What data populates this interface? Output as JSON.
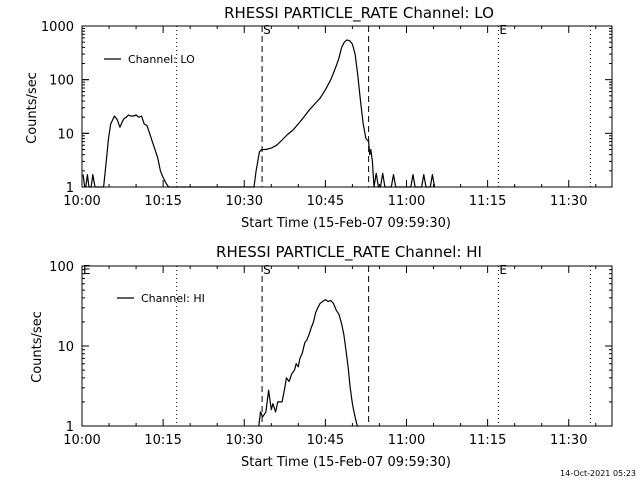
{
  "chart_data": [
    {
      "type": "line",
      "title": "RHESSI PARTICLE_RATE Channel: LO",
      "xlabel": "Start Time (15-Feb-07 09:59:30)",
      "ylabel": "Counts/sec",
      "x_unit": "minutes after 10:00",
      "xlim": [
        0,
        98
      ],
      "ylim": [
        1,
        1000
      ],
      "yscale": "log",
      "x_ticks": [
        {
          "label": "10:00",
          "value": 0
        },
        {
          "label": "10:15",
          "value": 15
        },
        {
          "label": "10:30",
          "value": 30
        },
        {
          "label": "10:45",
          "value": 45
        },
        {
          "label": "11:00",
          "value": 60
        },
        {
          "label": "11:15",
          "value": 75
        },
        {
          "label": "11:30",
          "value": 90
        }
      ],
      "y_ticks": [
        {
          "label": "1",
          "value": 1
        },
        {
          "label": "10",
          "value": 10
        },
        {
          "label": "100",
          "value": 100
        },
        {
          "label": "1000",
          "value": 1000
        }
      ],
      "legend": "Channel: LO",
      "legend_position": "top-left",
      "markers": [
        {
          "label": "",
          "minute": 0,
          "style": "dotted"
        },
        {
          "label": "",
          "minute": 17.5,
          "style": "dotted"
        },
        {
          "label": "S",
          "minute": 33.3,
          "style": "dashed"
        },
        {
          "label": "",
          "minute": 53,
          "style": "dashed"
        },
        {
          "label": "E",
          "minute": 77,
          "style": "dotted"
        },
        {
          "label": "",
          "minute": 94,
          "style": "dotted"
        }
      ],
      "series": [
        {
          "x": [
            0.2,
            0.5,
            0.7,
            1.0,
            1.3,
            1.7,
            2.0,
            2.4,
            2.7,
            3.0,
            4.0,
            4.3,
            4.6,
            4.9,
            5.3,
            5.7,
            6.0,
            6.5,
            7.0,
            7.5,
            7.8,
            8.2,
            8.6,
            9.0,
            9.5,
            10.0,
            10.5,
            11.0,
            11.5,
            12.0,
            12.5,
            13.0,
            13.5,
            14.0,
            14.5,
            15.0,
            15.5,
            16.0,
            16.3,
            16.6,
            16.9,
            17.2,
            31.8,
            32.2,
            32.5,
            32.8,
            33.2,
            34.0,
            35.0,
            36.0,
            37.0,
            38.0,
            39.0,
            40.0,
            41.0,
            42.0,
            43.0,
            44.0,
            45.0,
            46.0,
            47.0,
            47.5,
            48.0,
            48.5,
            49.0,
            49.5,
            50.0,
            50.5,
            51.0,
            51.5,
            52.0,
            52.5,
            53.0,
            53.2,
            53.4,
            53.7,
            54.0,
            54.4,
            54.8,
            55.2,
            55.6,
            56.0,
            56.4,
            56.8,
            57.2,
            57.6,
            58.0,
            58.4,
            58.8,
            59.2,
            59.6,
            60.0,
            60.4,
            60.8,
            61.2,
            61.6,
            62.0,
            62.4,
            62.8,
            63.2,
            63.6,
            64.0,
            64.4,
            64.8,
            65.2
          ],
          "y": [
            1.7,
            1,
            1,
            1.7,
            1,
            1,
            1.7,
            1,
            1,
            1,
            1,
            2,
            4,
            8,
            15,
            18,
            21,
            18,
            13,
            17,
            19,
            20,
            22,
            21,
            21,
            22,
            20,
            21,
            15,
            14,
            10,
            7,
            5,
            3.5,
            2,
            1.5,
            1.2,
            1,
            1,
            1,
            1,
            1,
            1,
            2,
            3,
            4.5,
            5,
            5,
            5.3,
            6,
            7.5,
            9.5,
            11.5,
            15,
            20,
            27,
            35,
            45,
            65,
            100,
            180,
            250,
            400,
            500,
            550,
            530,
            460,
            300,
            120,
            40,
            15,
            8,
            7,
            4,
            5,
            3,
            1,
            1.8,
            1,
            1,
            1.8,
            1,
            1,
            1,
            1,
            1.7,
            1,
            1,
            1,
            1,
            1,
            1,
            1,
            1,
            1.7,
            1,
            1,
            1,
            1,
            1.7,
            1,
            1,
            1,
            1.7,
            1
          ]
        }
      ]
    },
    {
      "type": "line",
      "title": "RHESSI PARTICLE_RATE Channel: HI",
      "xlabel": "Start Time (15-Feb-07 09:59:30)",
      "ylabel": "Counts/sec",
      "x_unit": "minutes after 10:00",
      "xlim": [
        0,
        98
      ],
      "ylim": [
        1,
        100
      ],
      "yscale": "log",
      "x_ticks": [
        {
          "label": "10:00",
          "value": 0
        },
        {
          "label": "10:15",
          "value": 15
        },
        {
          "label": "10:30",
          "value": 30
        },
        {
          "label": "10:45",
          "value": 45
        },
        {
          "label": "11:00",
          "value": 60
        },
        {
          "label": "11:15",
          "value": 75
        },
        {
          "label": "11:30",
          "value": 90
        }
      ],
      "y_ticks": [
        {
          "label": "1",
          "value": 1
        },
        {
          "label": "10",
          "value": 10
        },
        {
          "label": "100",
          "value": 100
        }
      ],
      "legend": "Channel: HI",
      "legend_position": "top-left",
      "markers": [
        {
          "label": "E",
          "minute": 0,
          "style": "dotted"
        },
        {
          "label": "",
          "minute": 17.5,
          "style": "dotted"
        },
        {
          "label": "S",
          "minute": 33.3,
          "style": "dashed"
        },
        {
          "label": "",
          "minute": 53,
          "style": "dashed"
        },
        {
          "label": "E",
          "minute": 77,
          "style": "dotted"
        },
        {
          "label": "",
          "minute": 94,
          "style": "dotted"
        }
      ],
      "series": [
        {
          "x": [
            32.7,
            33.0,
            33.4,
            34.0,
            34.5,
            35.0,
            35.3,
            35.8,
            36.2,
            37.0,
            37.5,
            37.8,
            38.3,
            38.8,
            39.3,
            39.6,
            40.0,
            40.3,
            40.7,
            41.2,
            41.6,
            42.0,
            42.4,
            42.8,
            43.2,
            43.6,
            44.0,
            44.5,
            45.0,
            45.5,
            46.0,
            46.5,
            47.0,
            47.5,
            48.0,
            48.4,
            48.8,
            49.2,
            49.6,
            50.0,
            50.3,
            50.6,
            50.9,
            51.2
          ],
          "y": [
            1,
            1.5,
            1.3,
            1.5,
            2.8,
            1.6,
            1.9,
            1.5,
            2,
            2,
            3,
            4,
            3.6,
            4.5,
            5,
            6,
            5.5,
            7,
            8,
            11,
            12,
            14,
            17,
            20,
            26,
            30,
            34,
            36,
            38,
            36,
            37,
            34,
            28,
            25,
            19,
            14,
            9,
            5.5,
            3,
            1.9,
            1.5,
            1.2,
            1,
            1
          ]
        }
      ]
    }
  ],
  "footer": {
    "timestamp": "14-Oct-2021 05:23"
  }
}
